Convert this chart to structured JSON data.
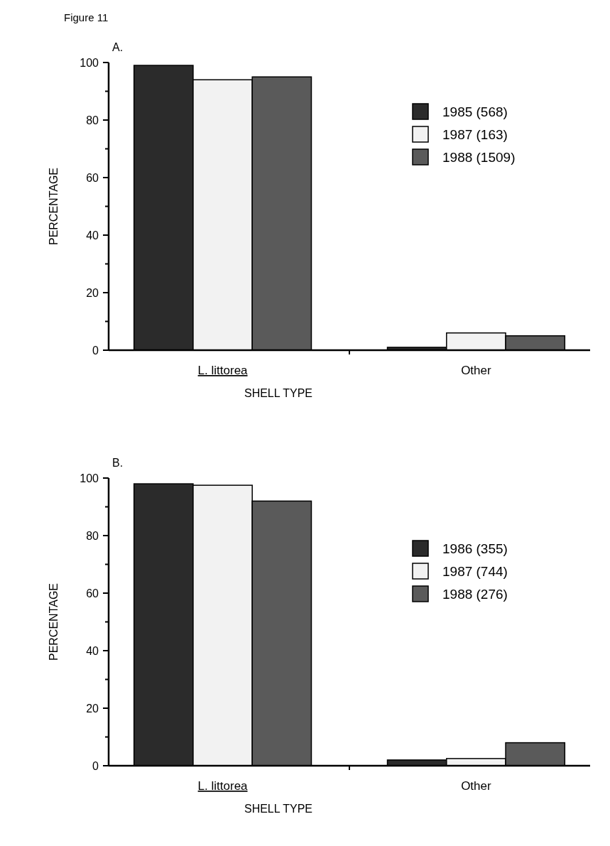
{
  "chart_data": [
    {
      "type": "bar",
      "title": "A.",
      "annotations": [
        "Figure 11"
      ],
      "xlabel": "SHELL TYPE",
      "ylabel": "PERCENTAGE",
      "categories": [
        "L. littorea",
        "Other"
      ],
      "series": [
        {
          "name": "1985  (568)",
          "color": "#2b2b2b",
          "values": [
            99,
            1
          ]
        },
        {
          "name": "1987  (163)",
          "color": "#f2f2f2",
          "values": [
            94,
            6
          ]
        },
        {
          "name": "1988  (1509)",
          "color": "#5a5a5a",
          "values": [
            95,
            5
          ]
        }
      ],
      "ylim": [
        0,
        100
      ],
      "yticks": [
        0,
        {
          "value": 10,
          "label": null
        },
        20,
        {
          "value": 30,
          "label": null
        },
        40,
        {
          "value": 50,
          "label": null
        },
        60,
        {
          "value": 70,
          "label": null
        },
        80,
        {
          "value": 90,
          "label": null
        },
        100
      ],
      "legend": "top right"
    },
    {
      "type": "bar",
      "title": "B.",
      "xlabel": "SHELL TYPE",
      "ylabel": "PERCENTAGE",
      "categories": [
        "L. littorea",
        "Other"
      ],
      "series": [
        {
          "name": "1986  (355)",
          "color": "#2b2b2b",
          "values": [
            98,
            2
          ]
        },
        {
          "name": "1987  (744)",
          "color": "#f2f2f2",
          "values": [
            97.5,
            2.5
          ]
        },
        {
          "name": "1988  (276)",
          "color": "#5a5a5a",
          "values": [
            92,
            8
          ]
        }
      ],
      "ylim": [
        0,
        100
      ],
      "yticks": [
        0,
        {
          "value": 10,
          "label": null
        },
        20,
        {
          "value": 30,
          "label": null
        },
        40,
        {
          "value": 50,
          "label": null
        },
        60,
        {
          "value": 70,
          "label": null
        },
        80,
        {
          "value": 90,
          "label": null
        },
        100
      ],
      "legend": "right"
    }
  ]
}
